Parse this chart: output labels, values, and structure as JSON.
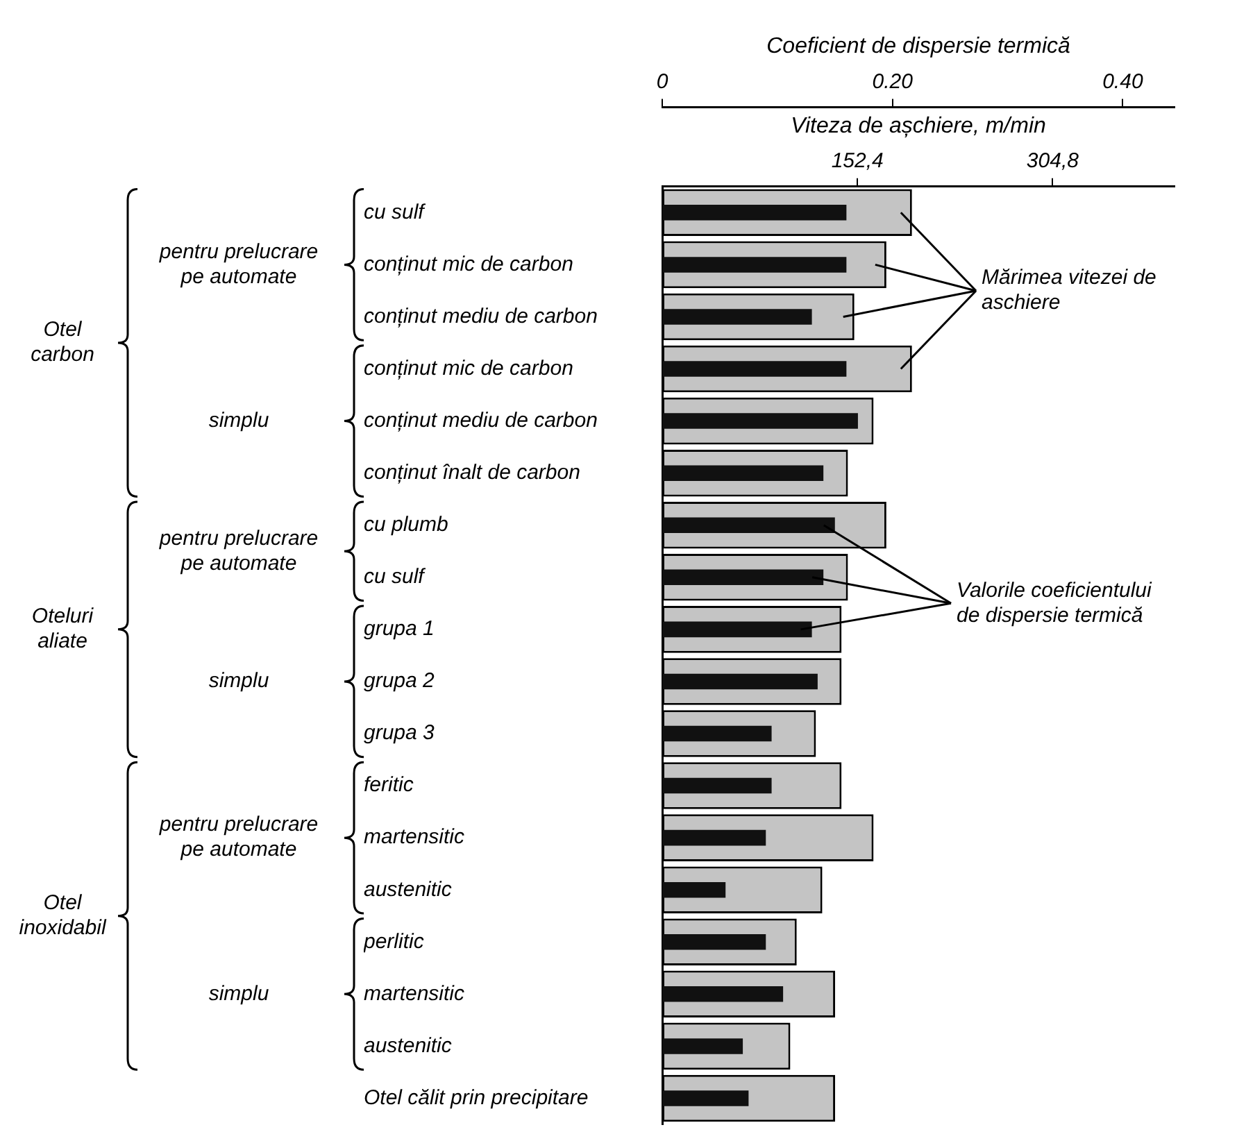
{
  "chart_data": {
    "type": "bar",
    "orientation": "horizontal",
    "categories": [
      "cu sulf",
      "conținut mic de carbon",
      "conținut mediu de carbon",
      "conținut mic de carbon",
      "conținut mediu de carbon",
      "conținut înalt de carbon",
      "cu plumb",
      "cu sulf",
      "grupa 1",
      "grupa 2",
      "grupa 3",
      "feritic",
      "martensitic",
      "austenitic",
      "perlitic",
      "martensitic",
      "austenitic",
      "Otel călit prin precipitare"
    ],
    "series": [
      {
        "color": "#c4c4c4",
        "values": [
          195,
          175,
          150,
          195,
          165,
          145,
          175,
          145,
          140,
          140,
          120,
          140,
          165,
          125,
          105,
          135,
          100,
          135
        ]
      },
      {
        "color": "#111111",
        "axis": "x2",
        "values": [
          0.16,
          0.16,
          0.13,
          0.16,
          0.17,
          0.14,
          0.15,
          0.14,
          0.13,
          0.135,
          0.095,
          0.095,
          0.09,
          0.055,
          0.09,
          0.105,
          0.07,
          0.075
        ]
      }
    ],
    "xlabel": "Viteza de așchiere, m/min",
    "xlim": [
      0,
      400
    ],
    "xticks": [
      {
        "value": 152.4,
        "label": "152,4"
      },
      {
        "value": 304.8,
        "label": "304,8"
      }
    ],
    "x2label": "Coeficient de dispersie termică",
    "x2lim": [
      0,
      0.445
    ],
    "x2ticks": [
      0,
      {
        "value": 0.2,
        "label": "0.20"
      },
      {
        "value": 0.4,
        "label": "0.40"
      }
    ],
    "annotations": [
      "Otel carbon",
      "pentru prelucrare pe automate",
      "simplu",
      "Oteluri aliate",
      "pentru prelucrare pe automate",
      "simplu",
      "Otel inoxidabil",
      "pentru prelucrare pe automate",
      "simplu",
      "Mărimea vitezei de aschiere",
      "Valorile coeficientului de dispersie termică"
    ]
  }
}
